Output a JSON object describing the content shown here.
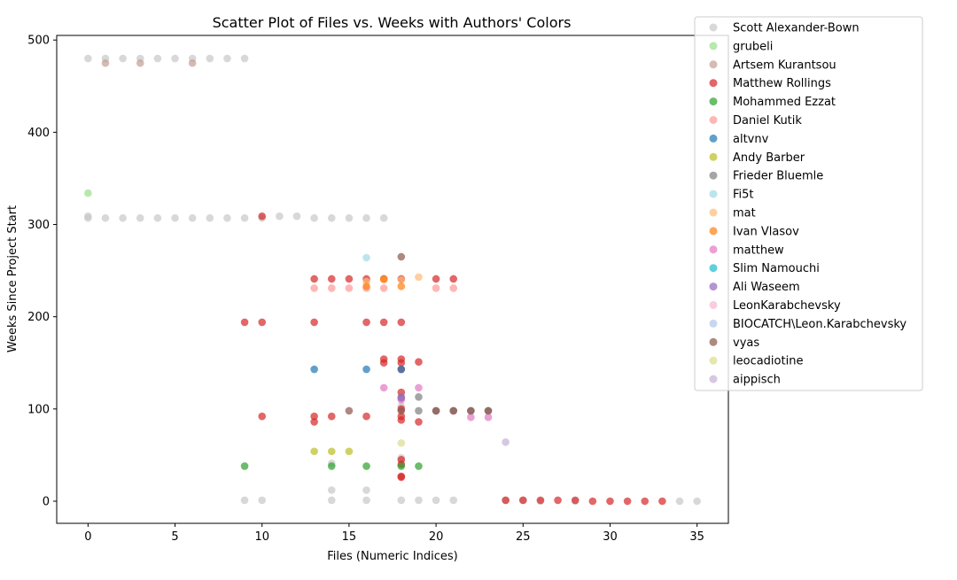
{
  "chart_data": {
    "type": "scatter",
    "title": "Scatter Plot of Files vs. Weeks with Authors' Colors",
    "xlabel": "Files (Numeric Indices)",
    "ylabel": "Weeks Since Project Start",
    "xlim": [
      -1.8,
      36.8
    ],
    "ylim": [
      -24,
      505
    ],
    "xticks": [
      0,
      5,
      10,
      15,
      20,
      25,
      30,
      35
    ],
    "yticks": [
      0,
      100,
      200,
      300,
      400,
      500
    ],
    "grid": false,
    "legend_position": "top-right",
    "series": [
      {
        "name": "Scott Alexander-Bown",
        "color": "#c7c7c7",
        "points": [
          [
            0,
            480
          ],
          [
            1,
            480
          ],
          [
            2,
            480
          ],
          [
            3,
            480
          ],
          [
            4,
            480
          ],
          [
            5,
            480
          ],
          [
            6,
            480
          ],
          [
            7,
            480
          ],
          [
            8,
            480
          ],
          [
            9,
            480
          ],
          [
            0,
            309
          ],
          [
            0,
            307
          ],
          [
            1,
            307
          ],
          [
            2,
            307
          ],
          [
            3,
            307
          ],
          [
            4,
            307
          ],
          [
            5,
            307
          ],
          [
            6,
            307
          ],
          [
            7,
            307
          ],
          [
            8,
            307
          ],
          [
            9,
            307
          ],
          [
            10,
            307
          ],
          [
            11,
            309
          ],
          [
            12,
            309
          ],
          [
            13,
            307
          ],
          [
            14,
            307
          ],
          [
            15,
            307
          ],
          [
            16,
            307
          ],
          [
            17,
            307
          ],
          [
            9,
            1
          ],
          [
            10,
            1
          ],
          [
            14,
            1
          ],
          [
            16,
            1
          ],
          [
            18,
            1
          ],
          [
            19,
            1
          ],
          [
            20,
            1
          ],
          [
            21,
            1
          ],
          [
            24,
            1
          ],
          [
            25,
            1
          ],
          [
            26,
            0
          ],
          [
            28,
            0
          ],
          [
            34,
            0
          ],
          [
            35,
            0
          ],
          [
            14,
            12
          ],
          [
            16,
            12
          ],
          [
            14,
            41
          ],
          [
            18,
            47
          ],
          [
            18,
            103
          ]
        ]
      },
      {
        "name": "grubeli",
        "color": "#98df8a",
        "points": [
          [
            0,
            334
          ]
        ]
      },
      {
        "name": "Artsem Kurantsou",
        "color": "#c49c94",
        "points": [
          [
            1,
            475
          ],
          [
            3,
            475
          ],
          [
            6,
            475
          ]
        ]
      },
      {
        "name": "Matthew Rollings",
        "color": "#d62728",
        "points": [
          [
            10,
            309
          ],
          [
            13,
            241
          ],
          [
            14,
            241
          ],
          [
            15,
            241
          ],
          [
            16,
            241
          ],
          [
            17,
            241
          ],
          [
            18,
            241
          ],
          [
            20,
            241
          ],
          [
            21,
            241
          ],
          [
            9,
            194
          ],
          [
            10,
            194
          ],
          [
            13,
            194
          ],
          [
            16,
            194
          ],
          [
            17,
            194
          ],
          [
            18,
            194
          ],
          [
            17,
            154
          ],
          [
            18,
            154
          ],
          [
            17,
            150
          ],
          [
            18,
            150
          ],
          [
            19,
            151
          ],
          [
            18,
            143
          ],
          [
            18,
            118
          ],
          [
            10,
            92
          ],
          [
            13,
            92
          ],
          [
            14,
            92
          ],
          [
            16,
            92
          ],
          [
            18,
            92
          ],
          [
            13,
            86
          ],
          [
            18,
            88
          ],
          [
            19,
            86
          ],
          [
            18,
            100
          ],
          [
            18,
            45
          ],
          [
            18,
            40
          ],
          [
            18,
            27
          ],
          [
            18,
            26
          ],
          [
            24,
            1
          ],
          [
            25,
            1
          ],
          [
            26,
            1
          ],
          [
            27,
            1
          ],
          [
            28,
            1
          ],
          [
            29,
            0
          ],
          [
            30,
            0
          ],
          [
            31,
            0
          ],
          [
            32,
            0
          ],
          [
            33,
            0
          ]
        ]
      },
      {
        "name": "Mohammed Ezzat",
        "color": "#2ca02c",
        "points": [
          [
            9,
            38
          ],
          [
            14,
            38
          ],
          [
            16,
            38
          ],
          [
            18,
            38
          ],
          [
            19,
            38
          ]
        ]
      },
      {
        "name": "Daniel Kutik",
        "color": "#ff9896",
        "points": [
          [
            13,
            231
          ],
          [
            14,
            231
          ],
          [
            15,
            231
          ],
          [
            16,
            231
          ],
          [
            17,
            231
          ],
          [
            20,
            231
          ],
          [
            21,
            231
          ]
        ]
      },
      {
        "name": "altvnv",
        "color": "#1f77b4",
        "points": [
          [
            13,
            143
          ],
          [
            16,
            143
          ],
          [
            18,
            143
          ]
        ]
      },
      {
        "name": "Andy Barber",
        "color": "#bcbd22",
        "points": [
          [
            13,
            54
          ],
          [
            14,
            54
          ],
          [
            15,
            54
          ]
        ]
      },
      {
        "name": "Frieder Bluemle",
        "color": "#7f7f7f",
        "points": [
          [
            18,
            113
          ],
          [
            19,
            113
          ],
          [
            19,
            98
          ],
          [
            20,
            98
          ],
          [
            21,
            98
          ],
          [
            22,
            98
          ],
          [
            23,
            98
          ]
        ]
      },
      {
        "name": "Fi5t",
        "color": "#9edae5",
        "points": [
          [
            16,
            264
          ]
        ]
      },
      {
        "name": "mat",
        "color": "#ffbb78",
        "points": [
          [
            16,
            238
          ],
          [
            17,
            240
          ],
          [
            18,
            240
          ],
          [
            19,
            243
          ]
        ]
      },
      {
        "name": "Ivan Vlasov",
        "color": "#ff7f0e",
        "points": [
          [
            16,
            233
          ],
          [
            18,
            233
          ],
          [
            17,
            241
          ]
        ]
      },
      {
        "name": "matthew",
        "color": "#e377c2",
        "points": [
          [
            17,
            123
          ],
          [
            19,
            123
          ],
          [
            22,
            91
          ],
          [
            23,
            91
          ],
          [
            18,
            110
          ]
        ]
      },
      {
        "name": "Slim Namouchi",
        "color": "#17becf",
        "points": []
      },
      {
        "name": "Ali Waseem",
        "color": "#9467bd",
        "points": [
          [
            18,
            112
          ]
        ]
      },
      {
        "name": "LeonKarabchevsky",
        "color": "#f7b6d2",
        "points": []
      },
      {
        "name": "BIOCATCH\\Leon.Karabchevsky",
        "color": "#aec7e8",
        "points": []
      },
      {
        "name": "vyas",
        "color": "#8c564b",
        "points": [
          [
            18,
            265
          ],
          [
            15,
            98
          ],
          [
            18,
            98
          ],
          [
            21,
            98
          ],
          [
            22,
            98
          ],
          [
            23,
            98
          ],
          [
            20,
            98
          ]
        ]
      },
      {
        "name": "leocadiotine",
        "color": "#dbdb8d",
        "points": [
          [
            18,
            63
          ]
        ]
      },
      {
        "name": "aippisch",
        "color": "#c5b0d5",
        "points": [
          [
            24,
            64
          ]
        ]
      }
    ]
  }
}
